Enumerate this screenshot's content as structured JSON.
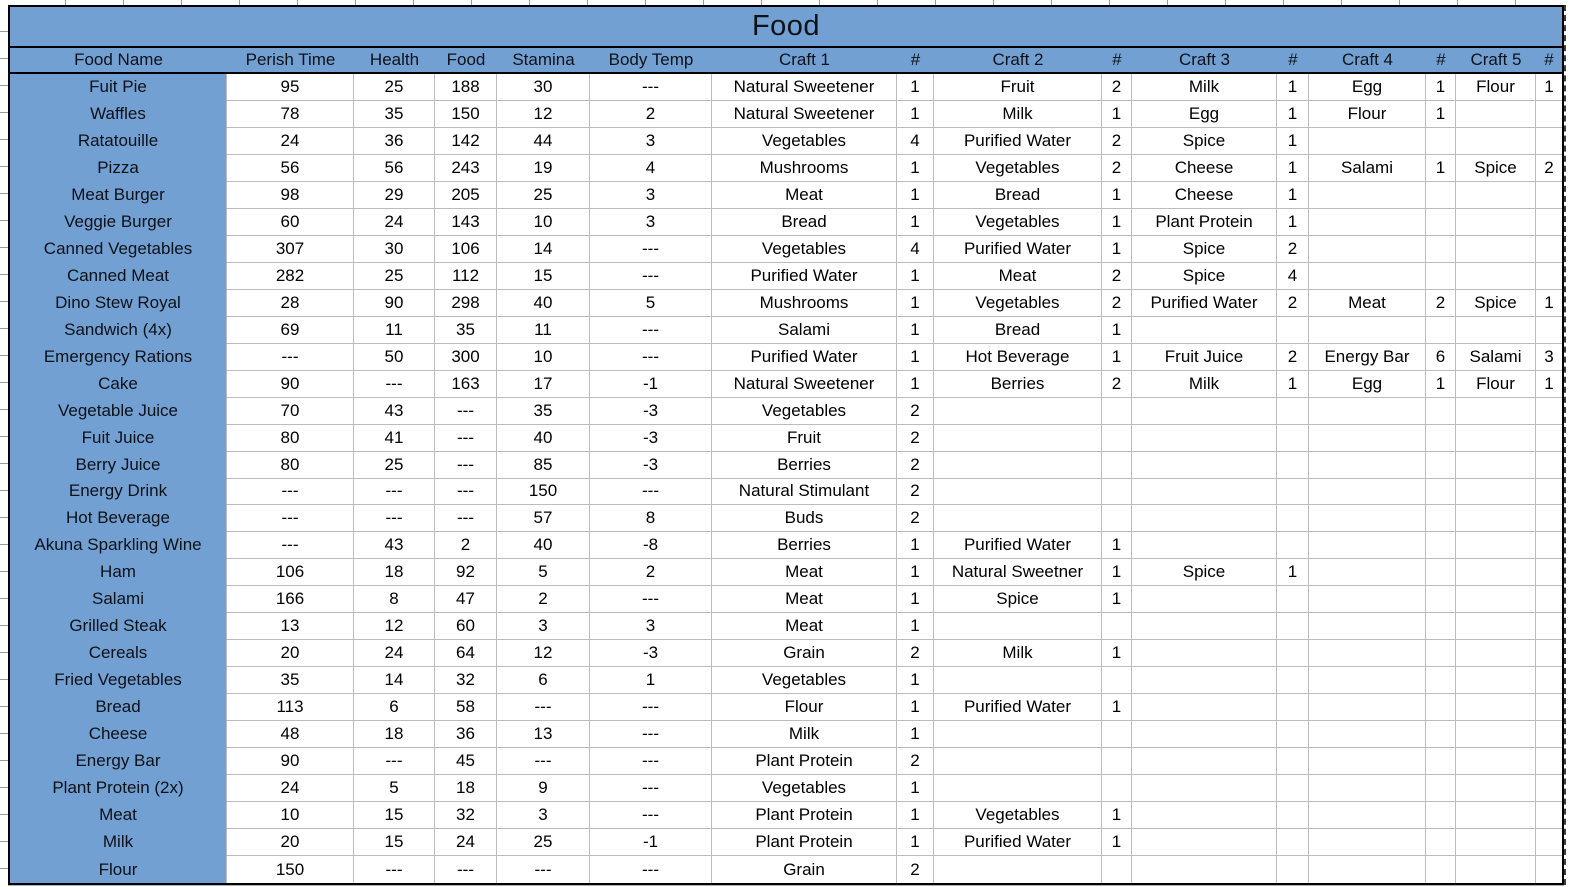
{
  "colors": {
    "header_blue": "#72A0D2",
    "grid_line": "#BCBCBC",
    "table_border": "#000000"
  },
  "table": {
    "title": "Food",
    "columns": [
      "Food Name",
      "Perish Time",
      "Health",
      "Food",
      "Stamina",
      "Body Temp",
      "Craft 1",
      "#",
      "Craft 2",
      "#",
      "Craft 3",
      "#",
      "Craft 4",
      "#",
      "Craft 5",
      "#"
    ],
    "rows": [
      {
        "name": "Fuit Pie",
        "perish_time": "95",
        "health": "25",
        "food": "188",
        "stamina": "30",
        "body_temp": "---",
        "crafts": [
          {
            "item": "Natural Sweetener",
            "qty": "1"
          },
          {
            "item": "Fruit",
            "qty": "2"
          },
          {
            "item": "Milk",
            "qty": "1"
          },
          {
            "item": "Egg",
            "qty": "1"
          },
          {
            "item": "Flour",
            "qty": "1"
          }
        ]
      },
      {
        "name": "Waffles",
        "perish_time": "78",
        "health": "35",
        "food": "150",
        "stamina": "12",
        "body_temp": "2",
        "crafts": [
          {
            "item": "Natural Sweetener",
            "qty": "1"
          },
          {
            "item": "Milk",
            "qty": "1"
          },
          {
            "item": "Egg",
            "qty": "1"
          },
          {
            "item": "Flour",
            "qty": "1"
          }
        ]
      },
      {
        "name": "Ratatouille",
        "perish_time": "24",
        "health": "36",
        "food": "142",
        "stamina": "44",
        "body_temp": "3",
        "crafts": [
          {
            "item": "Vegetables",
            "qty": "4"
          },
          {
            "item": "Purified Water",
            "qty": "2"
          },
          {
            "item": "Spice",
            "qty": "1"
          }
        ]
      },
      {
        "name": "Pizza",
        "perish_time": "56",
        "health": "56",
        "food": "243",
        "stamina": "19",
        "body_temp": "4",
        "crafts": [
          {
            "item": "Mushrooms",
            "qty": "1"
          },
          {
            "item": "Vegetables",
            "qty": "2"
          },
          {
            "item": "Cheese",
            "qty": "1"
          },
          {
            "item": "Salami",
            "qty": "1"
          },
          {
            "item": "Spice",
            "qty": "2"
          }
        ]
      },
      {
        "name": "Meat Burger",
        "perish_time": "98",
        "health": "29",
        "food": "205",
        "stamina": "25",
        "body_temp": "3",
        "crafts": [
          {
            "item": "Meat",
            "qty": "1"
          },
          {
            "item": "Bread",
            "qty": "1"
          },
          {
            "item": "Cheese",
            "qty": "1"
          }
        ]
      },
      {
        "name": "Veggie Burger",
        "perish_time": "60",
        "health": "24",
        "food": "143",
        "stamina": "10",
        "body_temp": "3",
        "crafts": [
          {
            "item": "Bread",
            "qty": "1"
          },
          {
            "item": "Vegetables",
            "qty": "1"
          },
          {
            "item": "Plant Protein",
            "qty": "1"
          }
        ]
      },
      {
        "name": "Canned Vegetables",
        "perish_time": "307",
        "health": "30",
        "food": "106",
        "stamina": "14",
        "body_temp": "---",
        "crafts": [
          {
            "item": "Vegetables",
            "qty": "4"
          },
          {
            "item": "Purified Water",
            "qty": "1"
          },
          {
            "item": "Spice",
            "qty": "2"
          }
        ]
      },
      {
        "name": "Canned Meat",
        "perish_time": "282",
        "health": "25",
        "food": "112",
        "stamina": "15",
        "body_temp": "---",
        "crafts": [
          {
            "item": "Purified Water",
            "qty": "1"
          },
          {
            "item": "Meat",
            "qty": "2"
          },
          {
            "item": "Spice",
            "qty": "4"
          }
        ]
      },
      {
        "name": "Dino Stew Royal",
        "perish_time": "28",
        "health": "90",
        "food": "298",
        "stamina": "40",
        "body_temp": "5",
        "crafts": [
          {
            "item": "Mushrooms",
            "qty": "1"
          },
          {
            "item": "Vegetables",
            "qty": "2"
          },
          {
            "item": "Purified Water",
            "qty": "2"
          },
          {
            "item": "Meat",
            "qty": "2"
          },
          {
            "item": "Spice",
            "qty": "1"
          }
        ]
      },
      {
        "name": "Sandwich (4x)",
        "perish_time": "69",
        "health": "11",
        "food": "35",
        "stamina": "11",
        "body_temp": "---",
        "crafts": [
          {
            "item": "Salami",
            "qty": "1"
          },
          {
            "item": "Bread",
            "qty": "1"
          }
        ]
      },
      {
        "name": "Emergency Rations",
        "perish_time": "---",
        "health": "50",
        "food": "300",
        "stamina": "10",
        "body_temp": "---",
        "crafts": [
          {
            "item": "Purified Water",
            "qty": "1"
          },
          {
            "item": "Hot Beverage",
            "qty": "1"
          },
          {
            "item": "Fruit Juice",
            "qty": "2"
          },
          {
            "item": "Energy Bar",
            "qty": "6"
          },
          {
            "item": "Salami",
            "qty": "3"
          }
        ]
      },
      {
        "name": "Cake",
        "perish_time": "90",
        "health": "---",
        "food": "163",
        "stamina": "17",
        "body_temp": "-1",
        "crafts": [
          {
            "item": "Natural Sweetener",
            "qty": "1"
          },
          {
            "item": "Berries",
            "qty": "2"
          },
          {
            "item": "Milk",
            "qty": "1"
          },
          {
            "item": "Egg",
            "qty": "1"
          },
          {
            "item": "Flour",
            "qty": "1"
          }
        ]
      },
      {
        "name": "Vegetable Juice",
        "perish_time": "70",
        "health": "43",
        "food": "---",
        "stamina": "35",
        "body_temp": "-3",
        "crafts": [
          {
            "item": "Vegetables",
            "qty": "2"
          }
        ]
      },
      {
        "name": "Fuit Juice",
        "perish_time": "80",
        "health": "41",
        "food": "---",
        "stamina": "40",
        "body_temp": "-3",
        "crafts": [
          {
            "item": "Fruit",
            "qty": "2"
          }
        ]
      },
      {
        "name": "Berry Juice",
        "perish_time": "80",
        "health": "25",
        "food": "---",
        "stamina": "85",
        "body_temp": "-3",
        "crafts": [
          {
            "item": "Berries",
            "qty": "2"
          }
        ]
      },
      {
        "name": "Energy Drink",
        "perish_time": "---",
        "health": "---",
        "food": "---",
        "stamina": "150",
        "body_temp": "---",
        "crafts": [
          {
            "item": "Natural Stimulant",
            "qty": "2"
          }
        ]
      },
      {
        "name": "Hot Beverage",
        "perish_time": "---",
        "health": "---",
        "food": "---",
        "stamina": "57",
        "body_temp": "8",
        "crafts": [
          {
            "item": "Buds",
            "qty": "2"
          }
        ]
      },
      {
        "name": "Akuna Sparkling Wine",
        "perish_time": "---",
        "health": "43",
        "food": "2",
        "stamina": "40",
        "body_temp": "-8",
        "crafts": [
          {
            "item": "Berries",
            "qty": "1"
          },
          {
            "item": "Purified Water",
            "qty": "1"
          }
        ]
      },
      {
        "name": "Ham",
        "perish_time": "106",
        "health": "18",
        "food": "92",
        "stamina": "5",
        "body_temp": "2",
        "crafts": [
          {
            "item": "Meat",
            "qty": "1"
          },
          {
            "item": "Natural Sweetner",
            "qty": "1"
          },
          {
            "item": "Spice",
            "qty": "1"
          }
        ]
      },
      {
        "name": "Salami",
        "perish_time": "166",
        "health": "8",
        "food": "47",
        "stamina": "2",
        "body_temp": "---",
        "crafts": [
          {
            "item": "Meat",
            "qty": "1"
          },
          {
            "item": "Spice",
            "qty": "1"
          }
        ]
      },
      {
        "name": "Grilled Steak",
        "perish_time": "13",
        "health": "12",
        "food": "60",
        "stamina": "3",
        "body_temp": "3",
        "crafts": [
          {
            "item": "Meat",
            "qty": "1"
          }
        ]
      },
      {
        "name": "Cereals",
        "perish_time": "20",
        "health": "24",
        "food": "64",
        "stamina": "12",
        "body_temp": "-3",
        "crafts": [
          {
            "item": "Grain",
            "qty": "2"
          },
          {
            "item": "Milk",
            "qty": "1"
          }
        ]
      },
      {
        "name": "Fried Vegetables",
        "perish_time": "35",
        "health": "14",
        "food": "32",
        "stamina": "6",
        "body_temp": "1",
        "crafts": [
          {
            "item": "Vegetables",
            "qty": "1"
          }
        ]
      },
      {
        "name": "Bread",
        "perish_time": "113",
        "health": "6",
        "food": "58",
        "stamina": "---",
        "body_temp": "---",
        "crafts": [
          {
            "item": "Flour",
            "qty": "1"
          },
          {
            "item": "Purified Water",
            "qty": "1"
          }
        ]
      },
      {
        "name": "Cheese",
        "perish_time": "48",
        "health": "18",
        "food": "36",
        "stamina": "13",
        "body_temp": "---",
        "crafts": [
          {
            "item": "Milk",
            "qty": "1"
          }
        ]
      },
      {
        "name": "Energy Bar",
        "perish_time": "90",
        "health": "---",
        "food": "45",
        "stamina": "---",
        "body_temp": "---",
        "crafts": [
          {
            "item": "Plant Protein",
            "qty": "2"
          }
        ]
      },
      {
        "name": "Plant Protein (2x)",
        "perish_time": "24",
        "health": "5",
        "food": "18",
        "stamina": "9",
        "body_temp": "---",
        "crafts": [
          {
            "item": "Vegetables",
            "qty": "1"
          }
        ]
      },
      {
        "name": "Meat",
        "perish_time": "10",
        "health": "15",
        "food": "32",
        "stamina": "3",
        "body_temp": "---",
        "crafts": [
          {
            "item": "Plant Protein",
            "qty": "1"
          },
          {
            "item": "Vegetables",
            "qty": "1"
          }
        ]
      },
      {
        "name": "Milk",
        "perish_time": "20",
        "health": "15",
        "food": "24",
        "stamina": "25",
        "body_temp": "-1",
        "crafts": [
          {
            "item": "Plant Protein",
            "qty": "1"
          },
          {
            "item": "Purified Water",
            "qty": "1"
          }
        ]
      },
      {
        "name": "Flour",
        "perish_time": "150",
        "health": "---",
        "food": "---",
        "stamina": "---",
        "body_temp": "---",
        "crafts": [
          {
            "item": "Grain",
            "qty": "2"
          }
        ]
      }
    ]
  }
}
